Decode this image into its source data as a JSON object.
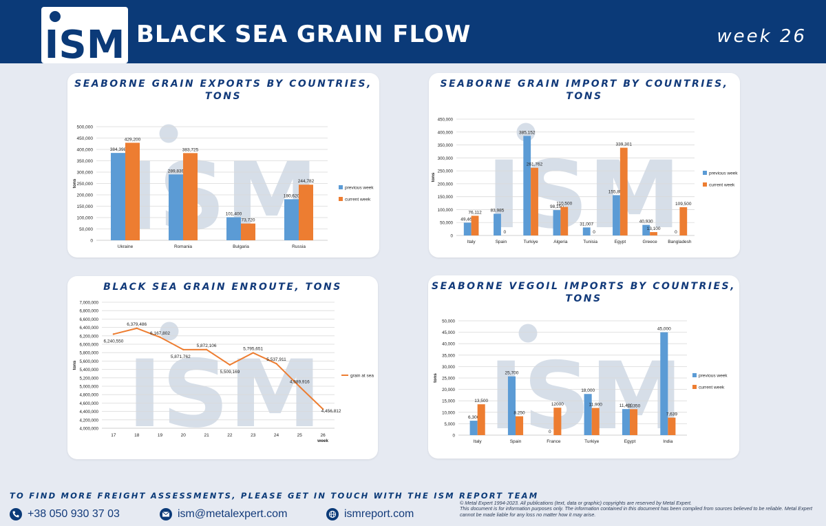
{
  "header": {
    "logo_text": "ISM",
    "title": "BLACK SEA GRAIN FLOW",
    "week": "week 26"
  },
  "colors": {
    "previous": "#5b9bd5",
    "current": "#ed7d31",
    "line": "#ed7d31",
    "brand": "#0b3a78"
  },
  "chart_data": [
    {
      "type": "bar",
      "title": "SEABORNE GRAIN EXPORTS BY COUNTRIES, TONS",
      "ylabel": "tons",
      "categories": [
        "Ukraine",
        "Romania",
        "Bulgaria",
        "Russia"
      ],
      "series": [
        {
          "name": "previous week",
          "values": [
            384398,
            289839,
            101400,
            180620
          ],
          "labels": [
            "384,398",
            "289,839",
            "101,400",
            "180,620"
          ]
        },
        {
          "name": "current week",
          "values": [
            429200,
            383725,
            73720,
            244782
          ],
          "labels": [
            "429,200",
            "383,725",
            "73,720",
            "244,782"
          ]
        }
      ],
      "ylim": [
        0,
        500000
      ],
      "yticks": [
        "0",
        "50,000",
        "100,000",
        "150,000",
        "200,000",
        "250,000",
        "300,000",
        "350,000",
        "400,000",
        "450,000",
        "500,000"
      ],
      "legend": "right"
    },
    {
      "type": "bar",
      "title": "SEABORNE GRAIN IMPORT BY COUNTRIES, TONS",
      "ylabel": "tons",
      "categories": [
        "Italy",
        "Spain",
        "Turkiye",
        "Algeria",
        "Tunisia",
        "Egypt",
        "Greece",
        "Bangladesh"
      ],
      "series": [
        {
          "name": "previous week",
          "values": [
            49468,
            83985,
            385152,
            98150,
            31007,
            155853,
            40930,
            0
          ],
          "labels": [
            "49,468",
            "83,985",
            "385,152",
            "98,150",
            "31,007",
            "155,853",
            "40,930",
            "0"
          ]
        },
        {
          "name": "current week",
          "values": [
            76112,
            0,
            261762,
            110500,
            0,
            339301,
            13100,
            109500
          ],
          "labels": [
            "76,112",
            "0",
            "261,762",
            "110,500",
            "0",
            "339,301",
            "13,100",
            "109,500"
          ]
        }
      ],
      "ylim": [
        0,
        450000
      ],
      "yticks": [
        "0",
        "50,000",
        "100,000",
        "150,000",
        "200,000",
        "250,000",
        "300,000",
        "350,000",
        "400,000",
        "450,000"
      ],
      "legend": "right"
    },
    {
      "type": "line",
      "title": "BLACK SEA GRAIN ENROUTE, TONS",
      "ylabel": "tons",
      "xlabel": "week",
      "x": [
        "17",
        "18",
        "19",
        "20",
        "21",
        "22",
        "23",
        "24",
        "25",
        "26"
      ],
      "series": [
        {
          "name": "grain at sea",
          "values": [
            6240550,
            6379486,
            6167802,
            5871762,
            5872106,
            5509169,
            5795651,
            5537911,
            4989916,
            4456812
          ],
          "labels": [
            "6,240,550",
            "6,379,486",
            "6,167,802",
            "5,871,762",
            "5,872,106",
            "5,509,169",
            "5,795,651",
            "5,537,911",
            "4,989,916",
            "4,456,812"
          ]
        }
      ],
      "ylim": [
        4000000,
        7000000
      ],
      "yticks": [
        "4,000,000",
        "4,200,000",
        "4,400,000",
        "4,600,000",
        "4,800,000",
        "5,000,000",
        "5,200,000",
        "5,400,000",
        "5,600,000",
        "5,800,000",
        "6,000,000",
        "6,200,000",
        "6,400,000",
        "6,600,000",
        "6,800,000",
        "7,000,000"
      ],
      "legend": "right"
    },
    {
      "type": "bar",
      "title": "SEABORNE VEGOIL IMPORTS BY COUNTRIES, TONS",
      "ylabel": "tons",
      "categories": [
        "Italy",
        "Spain",
        "France",
        "Turkiye",
        "Egypt",
        "India"
      ],
      "series": [
        {
          "name": "previous week",
          "values": [
            6300,
            25700,
            0,
            18000,
            11400,
            45000
          ],
          "labels": [
            "6,300",
            "25,700",
            "0",
            "18,000",
            "11,400",
            "45,000"
          ]
        },
        {
          "name": "current week",
          "values": [
            13500,
            8250,
            12000,
            11900,
            11350,
            7639
          ],
          "labels": [
            "13,500",
            "8,250",
            "12000",
            "11,900",
            "11,350",
            "7,639"
          ]
        }
      ],
      "ylim": [
        0,
        50000
      ],
      "yticks": [
        "0",
        "5,000",
        "10,000",
        "15,000",
        "20,000",
        "25,000",
        "30,000",
        "35,000",
        "40,000",
        "45,000",
        "50,000"
      ],
      "legend": "right"
    }
  ],
  "footer": {
    "cta": "TO FIND MORE FREIGHT ASSESSMENTS, PLEASE GET IN TOUCH WITH THE ISM REPORT TEAM",
    "phone": "+38 050 930 37 03",
    "email": "ism@metalexpert.com",
    "website": "ismreport.com",
    "legal_1": "© Metal Expert 1994-2023. All publications (text, data or graphic) copyrights are reserved by Metal Expert.",
    "legal_2": "This document is for information purposes only. The information contained in this document has been compiled from sources believed to be reliable. Metal Expert cannot be made liable for any loss no matter how it may arise."
  }
}
